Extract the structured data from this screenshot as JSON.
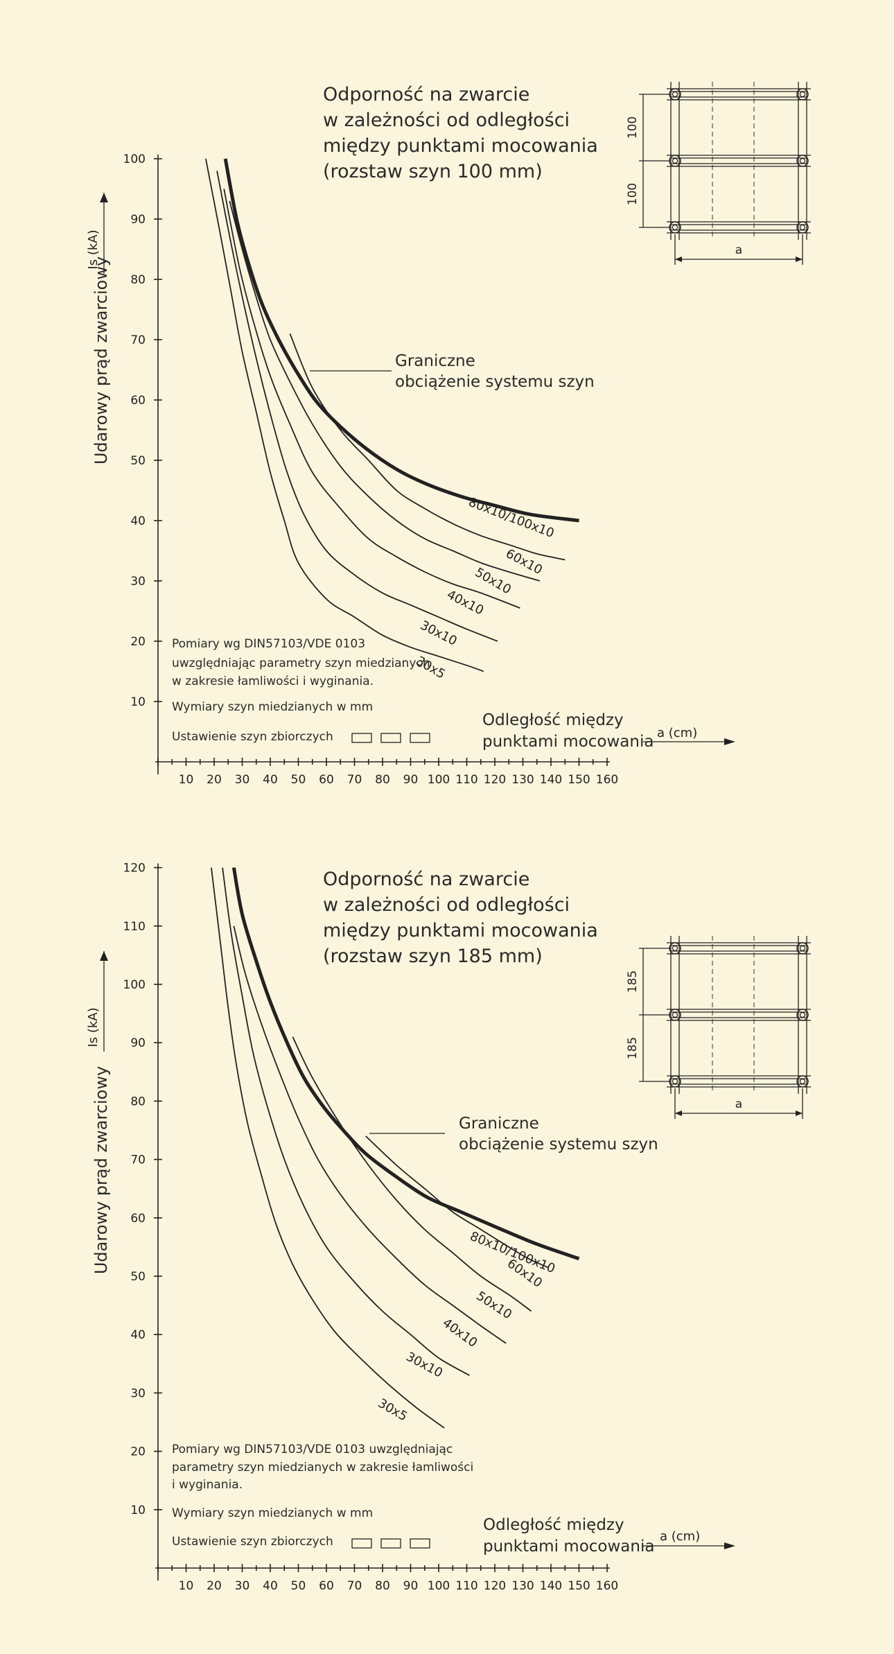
{
  "chart_data": [
    {
      "type": "line",
      "title": "Odporność na zwarcie\nw zależności od odległości\nmiędzy punktami mocowania\n(rozstaw szyn 100 mm)",
      "ylabel": "Udarowy prąd zwarciowy",
      "ylabel_symbol": "Is  (kA)",
      "xlabel": "Odległość między\npunktami mocowania",
      "xlabel_symbol": "a  (cm)",
      "xlim": [
        0,
        160
      ],
      "ylim": [
        0,
        100
      ],
      "x_ticks": [
        10,
        20,
        30,
        40,
        50,
        60,
        70,
        80,
        90,
        100,
        110,
        120,
        130,
        140,
        150,
        160
      ],
      "y_ticks": [
        10,
        20,
        30,
        40,
        50,
        60,
        70,
        80,
        90,
        100
      ],
      "limit_label": "Graniczne\nobciążenie systemu szyn",
      "notes": [
        "Pomiary wg DIN57103/VDE 0103",
        "uwzględniając parametry szyn miedzianych",
        "w zakresie łamliwości i wyginania.",
        "Wymiary szyn miedzianych w mm",
        "Ustawienie szyn zbiorczych"
      ],
      "diagram_spacing": [
        "100",
        "100"
      ],
      "diagram_a": "a",
      "series": [
        {
          "name": "30x5",
          "x": [
            17,
            22,
            26,
            30,
            35,
            40,
            45,
            50,
            60,
            70,
            80,
            90,
            100,
            110,
            116
          ],
          "y": [
            100,
            88,
            78,
            68,
            58,
            48,
            40,
            33,
            27,
            24,
            21,
            19,
            17.5,
            16,
            15
          ]
        },
        {
          "name": "30x10",
          "x": [
            21,
            26,
            31,
            36,
            41,
            46,
            52,
            60,
            70,
            80,
            90,
            100,
            110,
            121
          ],
          "y": [
            98,
            86,
            75,
            65,
            56,
            48,
            41,
            35,
            31,
            28,
            26,
            24,
            22,
            20
          ]
        },
        {
          "name": "40x10",
          "x": [
            23.5,
            29,
            34,
            40,
            47,
            55,
            65,
            75,
            85,
            95,
            105,
            115,
            129
          ],
          "y": [
            95,
            82,
            73,
            64,
            56,
            48,
            42,
            37,
            34,
            31.5,
            29.5,
            28,
            25.5
          ]
        },
        {
          "name": "50x10",
          "x": [
            25.5,
            30,
            35,
            40,
            47,
            55,
            65,
            75,
            85,
            95,
            105,
            115,
            125,
            136
          ],
          "y": [
            93,
            85,
            77,
            70,
            63,
            56,
            49,
            44,
            40,
            37,
            35,
            33,
            31.5,
            30
          ]
        },
        {
          "name": "60x10",
          "x": [
            47,
            55,
            65,
            75,
            85,
            95,
            105,
            115,
            125,
            135,
            145
          ],
          "y": [
            71,
            62,
            55,
            50,
            45,
            42,
            39.5,
            37.5,
            36,
            34.5,
            33.5
          ]
        },
        {
          "name": "80x10/100x10",
          "x": [
            24,
            28,
            32,
            37,
            43,
            49,
            56,
            64,
            74,
            85,
            96,
            108,
            120,
            133,
            150
          ],
          "y": [
            100,
            90,
            83,
            76,
            70,
            65,
            60,
            56,
            52,
            48.5,
            46,
            44,
            42.5,
            41,
            40
          ],
          "limit": true
        }
      ]
    },
    {
      "type": "line",
      "title": "Odporność na zwarcie\nw zależności od odległości\nmiędzy punktami mocowania\n(rozstaw szyn 185 mm)",
      "ylabel": "Udarowy prąd zwarciowy",
      "ylabel_symbol": "Is  (kA)",
      "xlabel": "Odległość między\npunktami mocowania",
      "xlabel_symbol": "a  (cm)",
      "xlim": [
        0,
        160
      ],
      "ylim": [
        0,
        120
      ],
      "x_ticks": [
        10,
        20,
        30,
        40,
        50,
        60,
        70,
        80,
        90,
        100,
        110,
        120,
        130,
        140,
        150,
        160
      ],
      "y_ticks": [
        10,
        20,
        30,
        40,
        50,
        60,
        70,
        80,
        90,
        100,
        110,
        120
      ],
      "limit_label": "Graniczne\nobciążenie systemu szyn",
      "notes": [
        "Pomiary wg DIN57103/VDE 0103 uwzględniając",
        "parametry szyn miedzianych w zakresie łamliwości",
        "i wyginania.",
        "Wymiary szyn miedzianych w mm",
        "Ustawienie szyn zbiorczych"
      ],
      "diagram_spacing": [
        "185",
        "185"
      ],
      "diagram_a": "a",
      "series": [
        {
          "name": "30x5",
          "x": [
            19,
            22,
            25,
            28,
            32,
            37,
            42,
            48,
            55,
            63,
            72,
            82,
            92,
            102
          ],
          "y": [
            120,
            108,
            96,
            86,
            76,
            67,
            59,
            52,
            46,
            40.5,
            36,
            31.5,
            27.5,
            24
          ]
        },
        {
          "name": "30x10",
          "x": [
            23,
            26,
            30,
            34,
            39,
            45,
            52,
            60,
            70,
            80,
            90,
            100,
            111
          ],
          "y": [
            120,
            109,
            98,
            88,
            79,
            70,
            62,
            55,
            49,
            44,
            40,
            36,
            33
          ]
        },
        {
          "name": "40x10",
          "x": [
            27,
            31,
            37,
            44,
            50,
            57,
            65,
            75,
            85,
            95,
            105,
            115,
            124
          ],
          "y": [
            110,
            102,
            93,
            84,
            77,
            70,
            64,
            58,
            53,
            48.5,
            45,
            41.5,
            38.5
          ]
        },
        {
          "name": "50x10",
          "x": [
            48,
            55,
            65,
            75,
            85,
            95,
            105,
            115,
            126,
            133
          ],
          "y": [
            91,
            84,
            76,
            69,
            63,
            58,
            54,
            50,
            46.5,
            44
          ]
        },
        {
          "name": "60x10",
          "x": [
            74,
            85,
            95,
            105,
            115,
            125,
            132,
            139
          ],
          "y": [
            74,
            69,
            65,
            61,
            58,
            55,
            53,
            51.5
          ]
        },
        {
          "name": "80x10/100x10",
          "x": [
            27,
            30,
            35,
            40,
            46,
            52,
            59,
            66,
            74,
            85,
            96,
            108,
            120,
            135,
            150
          ],
          "y": [
            120,
            112,
            104,
            97,
            90,
            84,
            79,
            75,
            71,
            67,
            63.5,
            61,
            58.5,
            55.5,
            53
          ],
          "limit": true
        }
      ]
    }
  ]
}
